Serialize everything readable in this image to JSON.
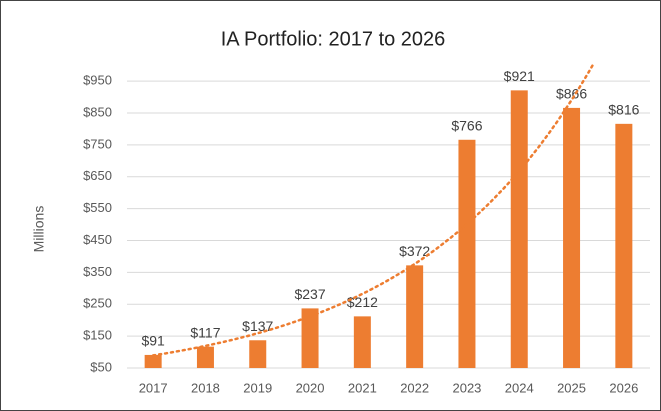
{
  "chart_data": {
    "type": "bar",
    "title": "IA Portfolio: 2017 to 2026",
    "y_label": "Millions",
    "categories": [
      "2017",
      "2018",
      "2019",
      "2020",
      "2021",
      "2022",
      "2023",
      "2024",
      "2025",
      "2026"
    ],
    "values": [
      91,
      117,
      137,
      237,
      212,
      372,
      766,
      921,
      866,
      816
    ],
    "value_labels": [
      "$91",
      "$117",
      "$137",
      "$237",
      "$212",
      "$372",
      "$766",
      "$921",
      "$866",
      "$816"
    ],
    "color": "#ed7d31",
    "trendline": "exponential",
    "ylim": [
      50,
      1010
    ],
    "yticks": [
      {
        "value": 50,
        "label": "$50"
      },
      {
        "value": 150,
        "label": "$150"
      },
      {
        "value": 250,
        "label": "$250"
      },
      {
        "value": 350,
        "label": "$350"
      },
      {
        "value": 450,
        "label": "$450"
      },
      {
        "value": 550,
        "label": "$550"
      },
      {
        "value": 650,
        "label": "$650"
      },
      {
        "value": 750,
        "label": "$750"
      },
      {
        "value": 850,
        "label": "$850"
      },
      {
        "value": 950,
        "label": "$950"
      }
    ],
    "grid": true
  }
}
